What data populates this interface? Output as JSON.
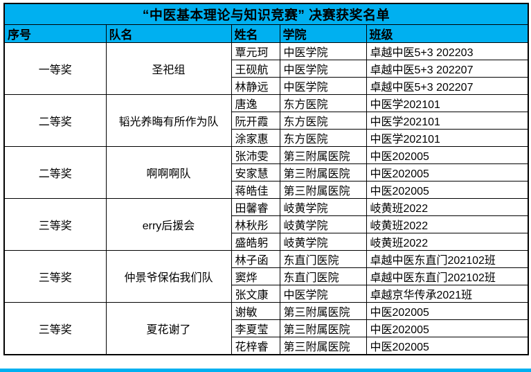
{
  "title": "“中医基本理论与知识竞赛” 决赛获奖名单",
  "colors": {
    "header_bg": "#00B0F0",
    "border": "#000000",
    "text": "#000000",
    "page_bg": "#FFFFFF"
  },
  "columns": [
    "序号",
    "队名",
    "姓名",
    "学院",
    "班级"
  ],
  "groups": [
    {
      "award": "一等奖",
      "team": "圣祀组",
      "members": [
        {
          "name": "覃元珂",
          "college": "中医学院",
          "class": "卓越中医5+3 202203"
        },
        {
          "name": "王砚航",
          "college": "中医学院",
          "class": "卓越中医5+3 202207"
        },
        {
          "name": "林静远",
          "college": "中医学院",
          "class": "卓越中医5+3 202207"
        }
      ]
    },
    {
      "award": "二等奖",
      "team": "韬光养晦有所作为队",
      "members": [
        {
          "name": "唐逸",
          "college": "东方医院",
          "class": "中医学202101"
        },
        {
          "name": "阮开霞",
          "college": "东方医院",
          "class": "中医学202101"
        },
        {
          "name": "涂家惠",
          "college": "东方医院",
          "class": "中医学202101"
        }
      ]
    },
    {
      "award": "二等奖",
      "team": "啊啊啊队",
      "members": [
        {
          "name": "张沛雯",
          "college": "第三附属医院",
          "class": "中医202005"
        },
        {
          "name": "安家慧",
          "college": "第三附属医院",
          "class": "中医202005"
        },
        {
          "name": "蒋皓佳",
          "college": "第三附属医院",
          "class": "中医202005"
        }
      ]
    },
    {
      "award": "三等奖",
      "team": "erry后援会",
      "members": [
        {
          "name": "田馨睿",
          "college": "岐黄学院",
          "class": "岐黄班2022"
        },
        {
          "name": "林秋彤",
          "college": "岐黄学院",
          "class": "岐黄班2022"
        },
        {
          "name": "盛皓躬",
          "college": "岐黄学院",
          "class": "岐黄班2022"
        }
      ]
    },
    {
      "award": "三等奖",
      "team": "仲景爷保佑我们队",
      "members": [
        {
          "name": "林子函",
          "college": "东直门医院",
          "class": "卓越中医东直门202102班"
        },
        {
          "name": "窦烨",
          "college": "东直门医院",
          "class": "卓越中医东直门202102班"
        },
        {
          "name": "张文康",
          "college": "中医学院",
          "class": "卓越京华传承2021班"
        }
      ]
    },
    {
      "award": "三等奖",
      "team": "夏花谢了",
      "members": [
        {
          "name": "谢敏",
          "college": "第三附属医院",
          "class": "中医202005"
        },
        {
          "name": "李夏莹",
          "college": "第三附属医院",
          "class": "中医202005"
        },
        {
          "name": "花梓睿",
          "college": "第三附属医院",
          "class": "中医202005"
        }
      ]
    }
  ]
}
